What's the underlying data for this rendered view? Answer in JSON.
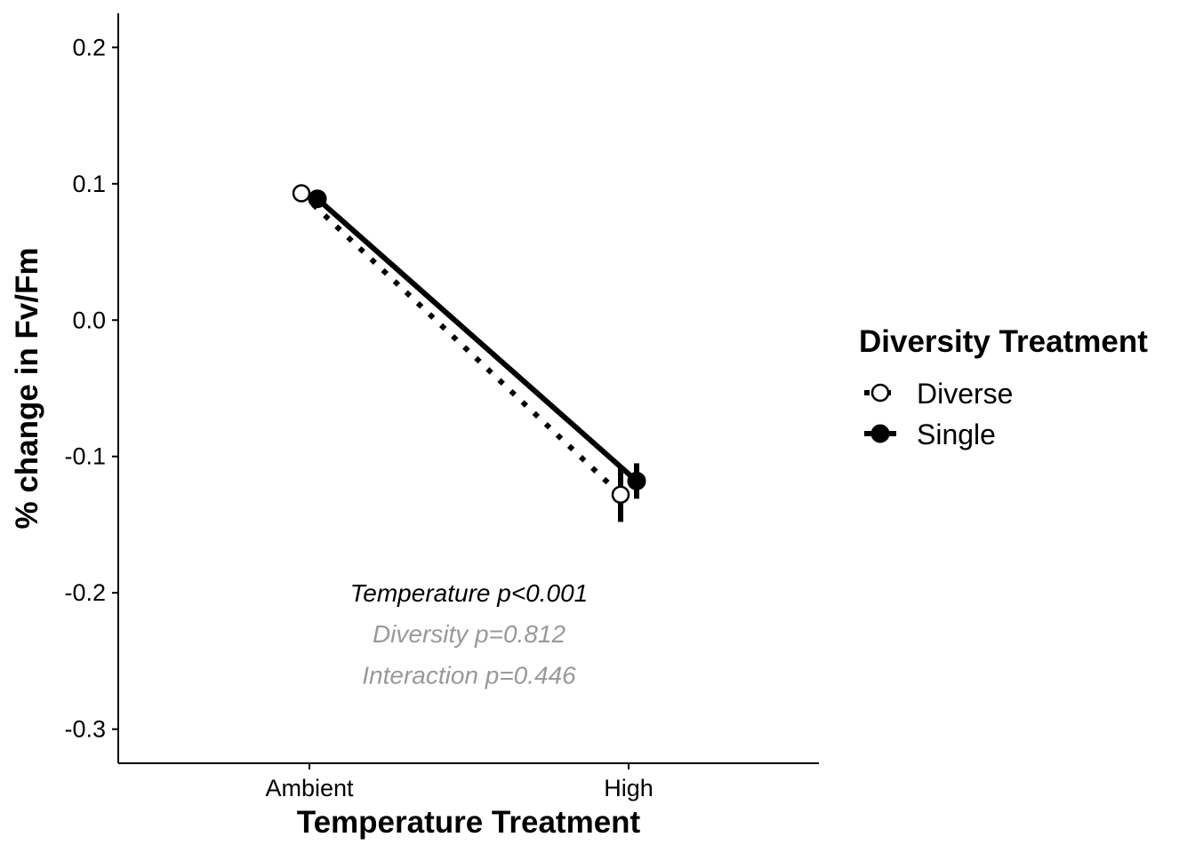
{
  "chart_data": {
    "type": "line",
    "xlabel": "Temperature Treatment",
    "ylabel": "% change in Fv/Fm",
    "categories": [
      "Ambient",
      "High"
    ],
    "ylim": [
      -0.325,
      0.225
    ],
    "yticks": [
      0.2,
      0.1,
      0.0,
      -0.1,
      -0.2,
      -0.3
    ],
    "ytick_labels": [
      "0.2",
      "0.1",
      "0.0",
      "-0.1",
      "-0.2",
      "-0.3"
    ],
    "grid": false,
    "legend": {
      "title": "Diversity Treatment",
      "placement": "right"
    },
    "series": [
      {
        "name": "Diverse",
        "values": [
          0.093,
          -0.128
        ],
        "error": [
          0.0,
          0.02
        ],
        "marker": "open-circle",
        "line": "dotted",
        "dodge": -1
      },
      {
        "name": "Single",
        "values": [
          0.089,
          -0.118
        ],
        "error": [
          0.0,
          0.013
        ],
        "marker": "filled-circle",
        "line": "solid",
        "dodge": 1
      }
    ],
    "annotations": [
      {
        "text": "Temperature p<0.001",
        "color": "#000000",
        "y": -0.2
      },
      {
        "text": "Diversity p=0.812",
        "color": "#999999",
        "y": -0.23
      },
      {
        "text": "Interaction p=0.446",
        "color": "#999999",
        "y": -0.26
      }
    ]
  }
}
